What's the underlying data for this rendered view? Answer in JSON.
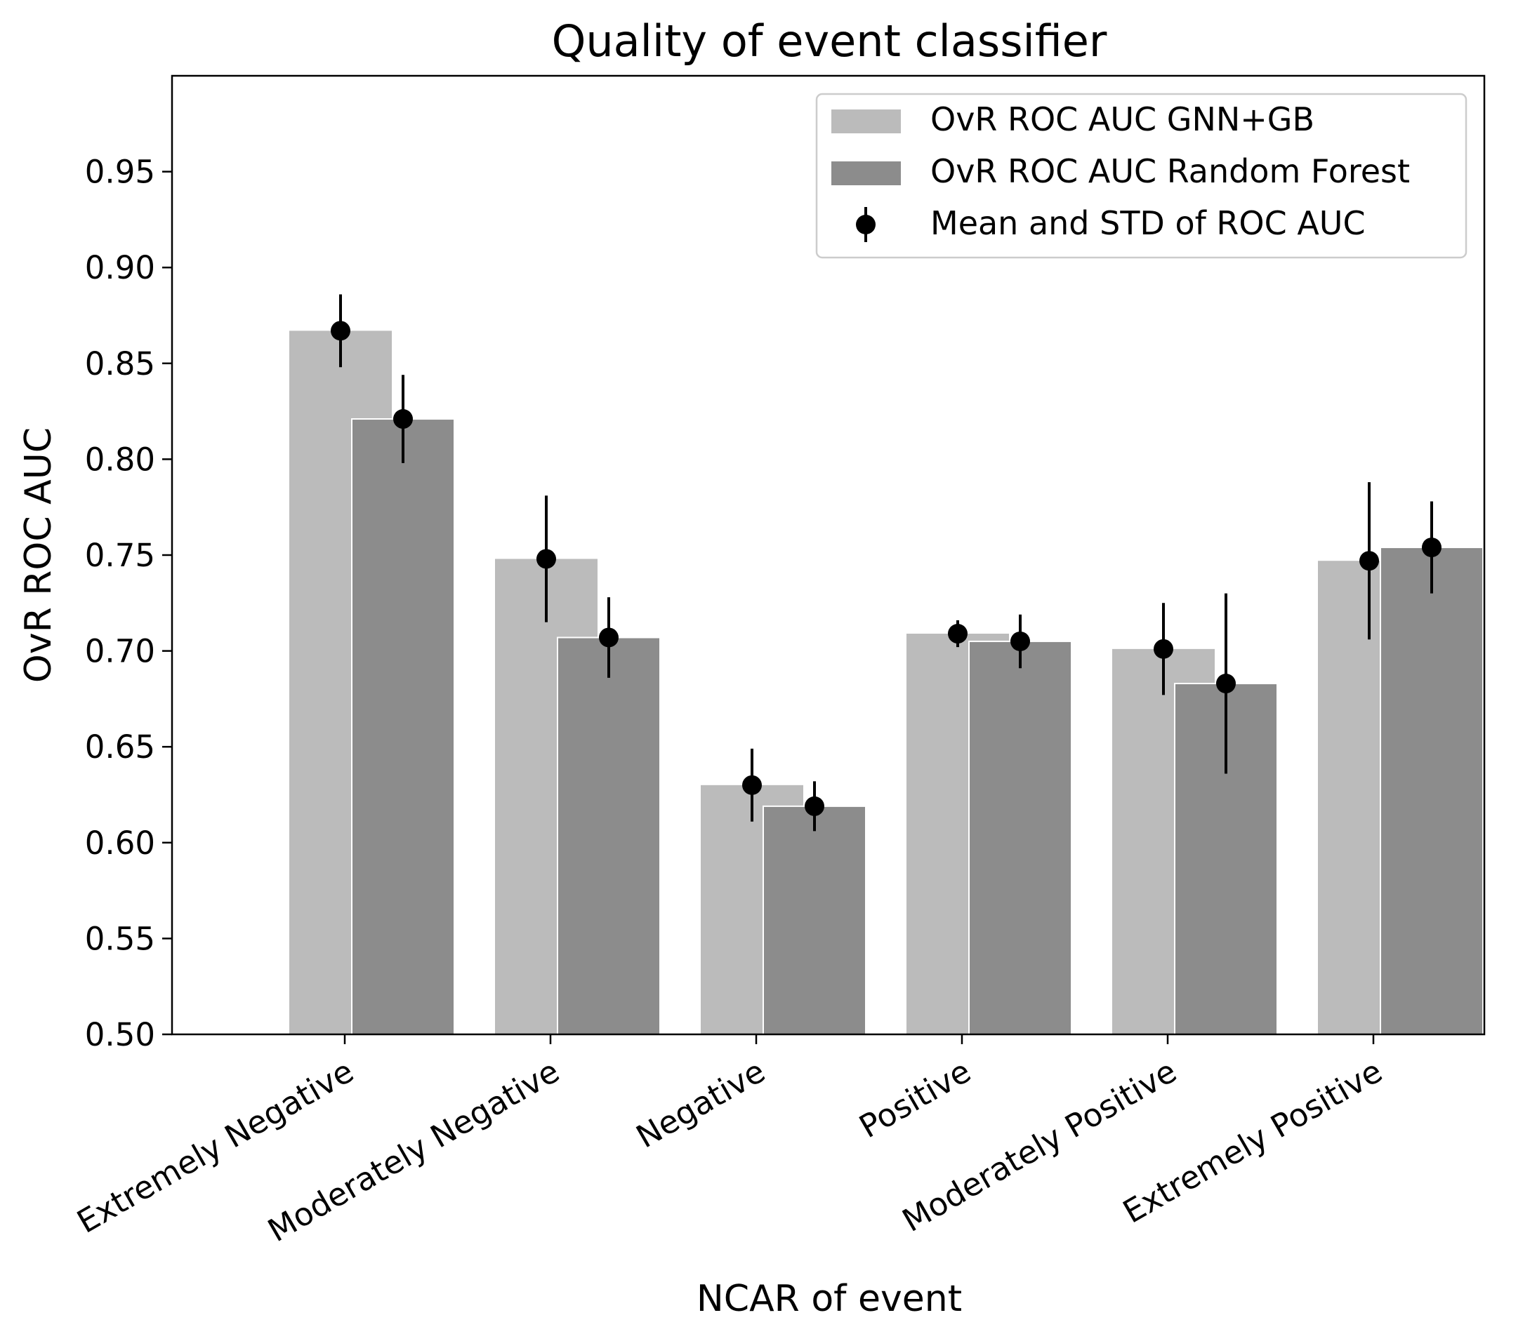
{
  "chart_data": {
    "type": "bar",
    "title": "Quality of event classifier",
    "xlabel": "NCAR of event",
    "ylabel": "OvR ROC AUC",
    "ylim": [
      0.5,
      1.0
    ],
    "yticks": [
      0.5,
      0.55,
      0.6,
      0.65,
      0.7,
      0.75,
      0.8,
      0.85,
      0.9,
      0.95
    ],
    "ytick_labels": [
      "0.50",
      "0.55",
      "0.60",
      "0.65",
      "0.70",
      "0.75",
      "0.80",
      "0.85",
      "0.90",
      "0.95"
    ],
    "grid": false,
    "legend_position": "top-right",
    "categories": [
      "Extremely Negative",
      "Moderately Negative",
      "Negative",
      "Positive",
      "Moderately Positive",
      "Extremely Positive"
    ],
    "series": [
      {
        "name": "OvR ROC AUC GNN+GB",
        "color": "#bbbbbb",
        "values": [
          0.867,
          0.748,
          0.63,
          0.709,
          0.701,
          0.747
        ],
        "mean": [
          0.867,
          0.748,
          0.63,
          0.709,
          0.701,
          0.747
        ],
        "std": [
          0.019,
          0.033,
          0.019,
          0.007,
          0.024,
          0.041
        ]
      },
      {
        "name": "OvR ROC AUC Random Forest",
        "color": "#8c8c8c",
        "values": [
          0.821,
          0.707,
          0.619,
          0.705,
          0.683,
          0.754
        ],
        "mean": [
          0.821,
          0.707,
          0.619,
          0.705,
          0.683,
          0.754
        ],
        "std": [
          0.023,
          0.021,
          0.013,
          0.014,
          0.047,
          0.024
        ]
      }
    ],
    "errorbar_legend": "Mean and STD of ROC AUC"
  }
}
